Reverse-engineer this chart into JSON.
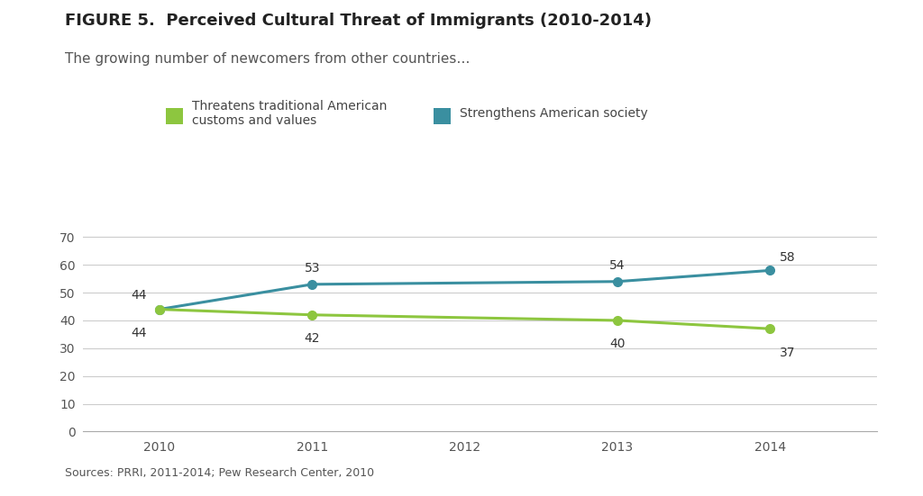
{
  "title": "FIGURE 5.  Perceived Cultural Threat of Immigrants (2010-2014)",
  "subtitle": "The growing number of newcomers from other countries…",
  "source": "Sources: PRRI, 2011-2014; Pew Research Center, 2010",
  "x_values": [
    2010,
    2011,
    2013,
    2014
  ],
  "x_ticks": [
    2010,
    2011,
    2012,
    2013,
    2014
  ],
  "threatens_values": [
    44,
    42,
    40,
    37
  ],
  "strengthens_values": [
    44,
    53,
    54,
    58
  ],
  "threatens_color": "#8dc63f",
  "strengthens_color": "#3a8fa0",
  "threatens_label": "Threatens traditional American\ncustoms and values",
  "strengthens_label": "Strengthens American society",
  "ylim": [
    0,
    75
  ],
  "yticks": [
    0,
    10,
    20,
    30,
    40,
    50,
    60,
    70
  ],
  "background_color": "#ffffff",
  "title_fontsize": 13,
  "subtitle_fontsize": 11,
  "source_fontsize": 9,
  "legend_fontsize": 10,
  "tick_fontsize": 10,
  "annotation_fontsize": 10,
  "line_width": 2.2,
  "marker_size": 7
}
